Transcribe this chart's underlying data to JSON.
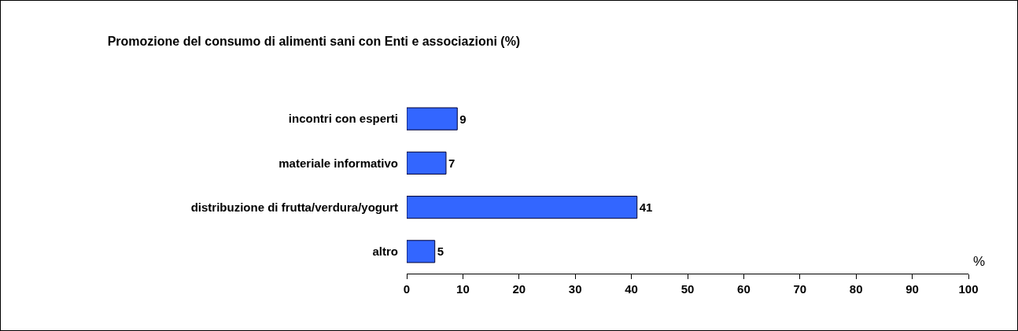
{
  "chart_data": {
    "type": "bar",
    "orientation": "horizontal",
    "title": "Promozione del consumo di alimenti sani con Enti e associazioni (%)",
    "xlabel": "%",
    "categories": [
      "incontri con esperti",
      "materiale informativo",
      "distribuzione di frutta/verdura/yogurt",
      "altro"
    ],
    "values": [
      9,
      7,
      41,
      5
    ],
    "color": "#3366ff",
    "xlim": [
      0,
      100
    ],
    "xticks": [
      0,
      10,
      20,
      30,
      40,
      50,
      60,
      70,
      80,
      90,
      100
    ],
    "grid": false,
    "legend": false,
    "data_labels": true
  }
}
